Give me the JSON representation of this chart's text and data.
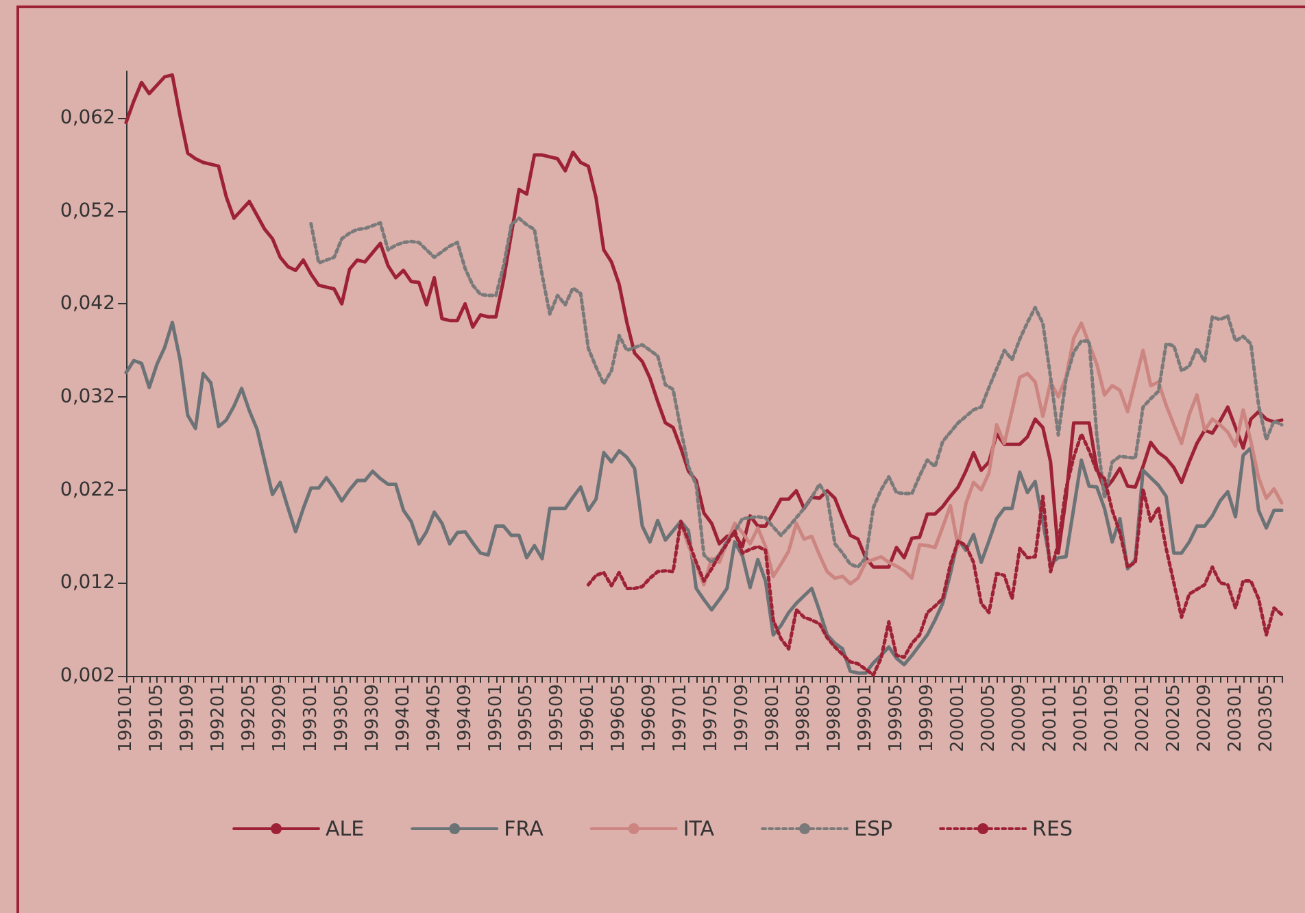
{
  "chart_data": {
    "type": "line",
    "categories": [
      "199101",
      null,
      null,
      null,
      "199105",
      null,
      null,
      null,
      "199109",
      null,
      null,
      null,
      "199201",
      null,
      null,
      null,
      "199205",
      null,
      null,
      null,
      "199209",
      null,
      null,
      null,
      "199301",
      null,
      null,
      null,
      "199305",
      null,
      null,
      null,
      "199309",
      null,
      null,
      null,
      "199401",
      null,
      null,
      null,
      "199405",
      null,
      null,
      null,
      "199409",
      null,
      null,
      null,
      "199501",
      null,
      null,
      null,
      "199505",
      null,
      null,
      null,
      "199509",
      null,
      null,
      null,
      "199601",
      null,
      null,
      null,
      "199605",
      null,
      null,
      null,
      "199609",
      null,
      null,
      null,
      "199701",
      null,
      null,
      null,
      "199705",
      null,
      null,
      null,
      "199709",
      null,
      null,
      null,
      "199801",
      null,
      null,
      null,
      "199805",
      null,
      null,
      null,
      "199809",
      null,
      null,
      null,
      "199901",
      null,
      null,
      null,
      "199905",
      null,
      null,
      null,
      "199909",
      null,
      null,
      null,
      "200001",
      null,
      null,
      null,
      "200005",
      null,
      null,
      null,
      "200009",
      null,
      null,
      null,
      "200101",
      null,
      null,
      null,
      "200105",
      null,
      null,
      null,
      "200109",
      null,
      null,
      null,
      "200201",
      null,
      null,
      null,
      "200205",
      null,
      null,
      null,
      "200209",
      null,
      null,
      null,
      "200301",
      null,
      null,
      null,
      "200305",
      null,
      null
    ],
    "series": [
      {
        "name": "ALE",
        "color": "#9e2236",
        "line_style": "solid",
        "values": [
          0.0615,
          0.0638,
          0.0658,
          0.0646,
          0.0655,
          0.0664,
          0.0666,
          0.0622,
          0.0582,
          0.0576,
          0.0572,
          0.057,
          0.0568,
          0.0535,
          0.0512,
          0.0521,
          0.053,
          0.0515,
          0.05,
          0.049,
          0.047,
          0.046,
          0.0456,
          0.0467,
          0.0452,
          0.044,
          0.0438,
          0.0436,
          0.042,
          0.0457,
          0.0467,
          0.0465,
          0.0475,
          0.0485,
          0.0461,
          0.0448,
          0.0456,
          0.0444,
          0.0443,
          0.0419,
          0.0448,
          0.0404,
          0.0402,
          0.0402,
          0.042,
          0.0395,
          0.0408,
          0.0406,
          0.0406,
          0.0446,
          0.0495,
          0.0543,
          0.0538,
          0.058,
          0.058,
          0.0578,
          0.0576,
          0.0563,
          0.0583,
          0.0572,
          0.0568,
          0.0534,
          0.0478,
          0.0465,
          0.0441,
          0.04,
          0.0367,
          0.0358,
          0.034,
          0.0315,
          0.0292,
          0.0287,
          0.0265,
          0.024,
          0.023,
          0.0195,
          0.0184,
          0.0162,
          0.017,
          0.0172,
          0.0159,
          0.0192,
          0.0181,
          0.0181,
          0.0195,
          0.021,
          0.021,
          0.0219,
          0.02,
          0.0212,
          0.0211,
          0.0219,
          0.0211,
          0.019,
          0.0171,
          0.0167,
          0.0147,
          0.0137,
          0.0137,
          0.0137,
          0.0158,
          0.0147,
          0.0168,
          0.0169,
          0.0194,
          0.0194,
          0.0202,
          0.0213,
          0.0223,
          0.024,
          0.026,
          0.0241,
          0.025,
          0.028,
          0.0269,
          0.0269,
          0.0269,
          0.0277,
          0.0296,
          0.0287,
          0.025,
          0.0152,
          0.0211,
          0.0292,
          0.0292,
          0.0292,
          0.0243,
          0.022,
          0.023,
          0.0243,
          0.0224,
          0.0223,
          0.0245,
          0.0271,
          0.026,
          0.0254,
          0.0244,
          0.0228,
          0.025,
          0.027,
          0.0284,
          0.0281,
          0.0294,
          0.0309,
          0.0287,
          0.0265,
          0.0296,
          0.0304,
          0.0296,
          0.0293,
          0.0295
        ]
      },
      {
        "name": "FRA",
        "color": "#6b7377",
        "line_style": "solid",
        "values": [
          0.0346,
          0.0359,
          0.0356,
          0.033,
          0.0355,
          0.0373,
          0.04,
          0.036,
          0.03,
          0.0286,
          0.0345,
          0.0335,
          0.0288,
          0.0295,
          0.031,
          0.0329,
          0.0305,
          0.0285,
          0.025,
          0.0215,
          0.0228,
          0.0201,
          0.0175,
          0.02,
          0.0222,
          0.0222,
          0.0233,
          0.0222,
          0.0208,
          0.022,
          0.023,
          0.023,
          0.024,
          0.0232,
          0.0226,
          0.0226,
          0.0198,
          0.0186,
          0.0162,
          0.0175,
          0.0196,
          0.0184,
          0.0162,
          0.0174,
          0.0175,
          0.0163,
          0.0152,
          0.015,
          0.0181,
          0.0181,
          0.0171,
          0.0171,
          0.0147,
          0.016,
          0.0146,
          0.02,
          0.02,
          0.02,
          0.0212,
          0.0223,
          0.0198,
          0.021,
          0.026,
          0.025,
          0.0262,
          0.0255,
          0.0243,
          0.0181,
          0.0164,
          0.0187,
          0.0166,
          0.0176,
          0.0186,
          0.0176,
          0.0114,
          0.0102,
          0.0091,
          0.0102,
          0.0114,
          0.0164,
          0.0149,
          0.0115,
          0.0145,
          0.0122,
          0.0064,
          0.0074,
          0.0088,
          0.0098,
          0.0106,
          0.0114,
          0.009,
          0.0064,
          0.0055,
          0.0049,
          0.0025,
          0.0023,
          0.0023,
          0.0034,
          0.0042,
          0.0051,
          0.0039,
          0.0032,
          0.0042,
          0.0053,
          0.0064,
          0.008,
          0.0098,
          0.013,
          0.0167,
          0.0155,
          0.0172,
          0.0142,
          0.0165,
          0.0189,
          0.02,
          0.02,
          0.0239,
          0.0217,
          0.0229,
          0.0185,
          0.014,
          0.0147,
          0.0148,
          0.02,
          0.0252,
          0.0224,
          0.0223,
          0.02,
          0.0164,
          0.0189,
          0.0135,
          0.0145,
          0.0241,
          0.0233,
          0.0225,
          0.0213,
          0.0152,
          0.0152,
          0.0164,
          0.0181,
          0.0181,
          0.0192,
          0.0208,
          0.0218,
          0.0191,
          0.0257,
          0.0265,
          0.0198,
          0.0179,
          0.0198,
          0.0198
        ]
      },
      {
        "name": "ITA",
        "color": "#cc8580",
        "line_style": "solid",
        "values": [
          null,
          null,
          null,
          null,
          null,
          null,
          null,
          null,
          null,
          null,
          null,
          null,
          null,
          null,
          null,
          null,
          null,
          null,
          null,
          null,
          null,
          null,
          null,
          null,
          null,
          null,
          null,
          null,
          null,
          null,
          null,
          null,
          null,
          null,
          null,
          null,
          null,
          null,
          null,
          null,
          null,
          null,
          null,
          null,
          null,
          null,
          null,
          null,
          null,
          null,
          null,
          null,
          null,
          null,
          null,
          null,
          null,
          null,
          null,
          null,
          null,
          null,
          null,
          null,
          null,
          null,
          null,
          null,
          null,
          null,
          null,
          null,
          0.0184,
          0.016,
          0.014,
          0.0118,
          0.0146,
          0.0142,
          0.0163,
          0.0184,
          0.0174,
          0.0162,
          0.0179,
          0.0159,
          0.0127,
          0.014,
          0.0154,
          0.0184,
          0.0167,
          0.017,
          0.015,
          0.0132,
          0.0125,
          0.0127,
          0.0119,
          0.0125,
          0.0142,
          0.0145,
          0.0148,
          0.0142,
          0.0138,
          0.0133,
          0.0125,
          0.0161,
          0.016,
          0.0158,
          0.018,
          0.0203,
          0.0159,
          0.0205,
          0.0228,
          0.022,
          0.0238,
          0.029,
          0.027,
          0.0305,
          0.0341,
          0.0345,
          0.0336,
          0.0299,
          0.0336,
          0.032,
          0.0341,
          0.0383,
          0.0399,
          0.0377,
          0.0355,
          0.0322,
          0.0332,
          0.0327,
          0.0304,
          0.0337,
          0.037,
          0.0332,
          0.0336,
          0.0311,
          0.029,
          0.027,
          0.0301,
          0.0322,
          0.0284,
          0.0296,
          0.029,
          0.0282,
          0.0267,
          0.0306,
          0.0272,
          0.0233,
          0.0211,
          0.0221,
          0.0206
        ]
      },
      {
        "name": "ESP",
        "color": "#7a7a7a",
        "line_style": "dotted",
        "values": [
          null,
          null,
          null,
          null,
          null,
          null,
          null,
          null,
          null,
          null,
          null,
          null,
          null,
          null,
          null,
          null,
          null,
          null,
          null,
          null,
          null,
          null,
          null,
          null,
          0.0506,
          0.0464,
          0.0467,
          0.047,
          0.049,
          0.0496,
          0.05,
          0.0501,
          0.0504,
          0.0507,
          0.0478,
          0.0483,
          0.0486,
          0.0487,
          0.0486,
          0.0478,
          0.047,
          0.0476,
          0.0482,
          0.0486,
          0.0458,
          0.044,
          0.043,
          0.0429,
          0.0429,
          0.0461,
          0.0505,
          0.0512,
          0.0505,
          0.05,
          0.0451,
          0.0409,
          0.0429,
          0.0419,
          0.0437,
          0.0431,
          0.0372,
          0.0352,
          0.0334,
          0.0348,
          0.0386,
          0.037,
          0.0373,
          0.0376,
          0.037,
          0.0364,
          0.0333,
          0.0328,
          0.0285,
          0.0245,
          0.0225,
          0.015,
          0.0142,
          0.015,
          0.0165,
          0.0175,
          0.0189,
          0.019,
          0.0191,
          0.019,
          0.018,
          0.0171,
          0.018,
          0.019,
          0.02,
          0.0212,
          0.0226,
          0.0213,
          0.0162,
          0.0152,
          0.014,
          0.0137,
          0.0147,
          0.0201,
          0.022,
          0.0234,
          0.0217,
          0.0216,
          0.0216,
          0.0235,
          0.0252,
          0.0245,
          0.0272,
          0.0282,
          0.0292,
          0.0299,
          0.0306,
          0.0309,
          0.033,
          0.035,
          0.037,
          0.036,
          0.0382,
          0.04,
          0.0416,
          0.0399,
          0.0341,
          0.0279,
          0.0339,
          0.0368,
          0.038,
          0.038,
          0.0279,
          0.0211,
          0.025,
          0.0256,
          0.0255,
          0.0254,
          0.0309,
          0.0318,
          0.0326,
          0.0377,
          0.0375,
          0.0348,
          0.0353,
          0.0372,
          0.0358,
          0.0406,
          0.0403,
          0.0407,
          0.038,
          0.0385,
          0.0377,
          0.0311,
          0.0274,
          0.0294,
          0.029
        ]
      },
      {
        "name": "RES",
        "color": "#9e2236",
        "line_style": "dotted",
        "values": [
          null,
          null,
          null,
          null,
          null,
          null,
          null,
          null,
          null,
          null,
          null,
          null,
          null,
          null,
          null,
          null,
          null,
          null,
          null,
          null,
          null,
          null,
          null,
          null,
          null,
          null,
          null,
          null,
          null,
          null,
          null,
          null,
          null,
          null,
          null,
          null,
          null,
          null,
          null,
          null,
          null,
          null,
          null,
          null,
          null,
          null,
          null,
          null,
          null,
          null,
          null,
          null,
          null,
          null,
          null,
          null,
          null,
          null,
          null,
          null,
          0.0118,
          0.0128,
          0.0131,
          0.0117,
          0.0131,
          0.0114,
          0.0114,
          0.0116,
          0.0125,
          0.0132,
          0.0133,
          0.0132,
          0.0186,
          0.0165,
          0.0142,
          0.0122,
          0.0135,
          0.015,
          0.0162,
          0.0176,
          0.0152,
          0.0156,
          0.0159,
          0.0155,
          0.008,
          0.006,
          0.0049,
          0.0091,
          0.0083,
          0.008,
          0.0076,
          0.0061,
          0.0051,
          0.0043,
          0.0035,
          0.0033,
          0.0027,
          0.0021,
          0.0039,
          0.0078,
          0.0042,
          0.004,
          0.0055,
          0.0064,
          0.0088,
          0.0095,
          0.0103,
          0.014,
          0.0165,
          0.016,
          0.0142,
          0.0098,
          0.0088,
          0.013,
          0.0128,
          0.0103,
          0.0157,
          0.0147,
          0.0148,
          0.0213,
          0.0132,
          0.0162,
          0.0221,
          0.0255,
          0.028,
          0.0262,
          0.024,
          0.0232,
          0.0198,
          0.0174,
          0.0137,
          0.0142,
          0.0221,
          0.0186,
          0.0201,
          0.0157,
          0.012,
          0.0083,
          0.0108,
          0.0113,
          0.0118,
          0.0137,
          0.012,
          0.0118,
          0.0093,
          0.0122,
          0.0122,
          0.0103,
          0.0064,
          0.0093,
          0.0086
        ]
      }
    ],
    "ylim": [
      0.002,
      0.067
    ],
    "yticks": [
      {
        "value": 0.002,
        "label": "0,002"
      },
      {
        "value": 0.012,
        "label": "0,012"
      },
      {
        "value": 0.022,
        "label": "0,022"
      },
      {
        "value": 0.032,
        "label": "0,032"
      },
      {
        "value": 0.042,
        "label": "0,042"
      },
      {
        "value": 0.052,
        "label": "0,052"
      },
      {
        "value": 0.062,
        "label": "0,062"
      }
    ],
    "grid": false,
    "legend": "bottom",
    "marker": "none"
  }
}
